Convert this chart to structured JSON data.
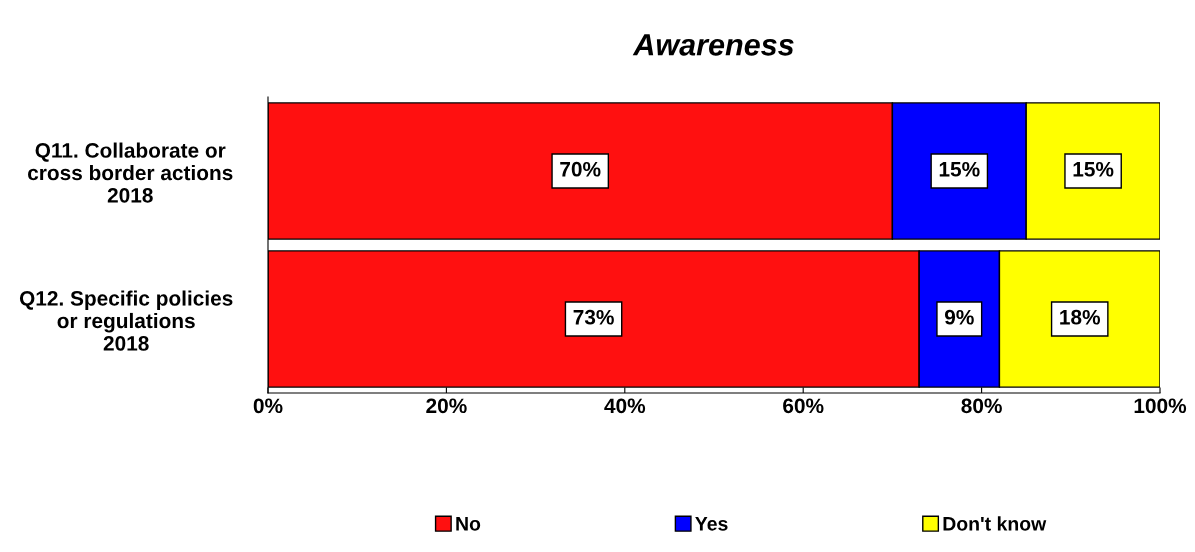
{
  "chart_data": {
    "type": "bar",
    "title": "Awareness",
    "orientation": "horizontal",
    "stacked": true,
    "categories": [
      "Q11. Collaborate or\ncross border actions\n2018",
      "Q12. Specific policies\nor regulations\n2018"
    ],
    "series": [
      {
        "name": "No",
        "color": "#ff1010",
        "values": [
          70,
          73
        ],
        "value_labels": [
          "70%",
          "73%"
        ]
      },
      {
        "name": "Yes",
        "color": "#0000ff",
        "values": [
          15,
          9
        ],
        "value_labels": [
          "15%",
          "9%"
        ]
      },
      {
        "name": "Don't know",
        "color": "#ffff00",
        "values": [
          15,
          18
        ],
        "value_labels": [
          "15%",
          "18%"
        ]
      }
    ],
    "xlim": [
      0,
      100
    ],
    "xticks": [
      {
        "value": 0,
        "label": "0%"
      },
      {
        "value": 20,
        "label": "20%"
      },
      {
        "value": 40,
        "label": "40%"
      },
      {
        "value": 60,
        "label": "60%"
      },
      {
        "value": 80,
        "label": "80%"
      },
      {
        "value": 100,
        "label": "100%"
      }
    ],
    "grid": false,
    "legend": "bottom"
  }
}
